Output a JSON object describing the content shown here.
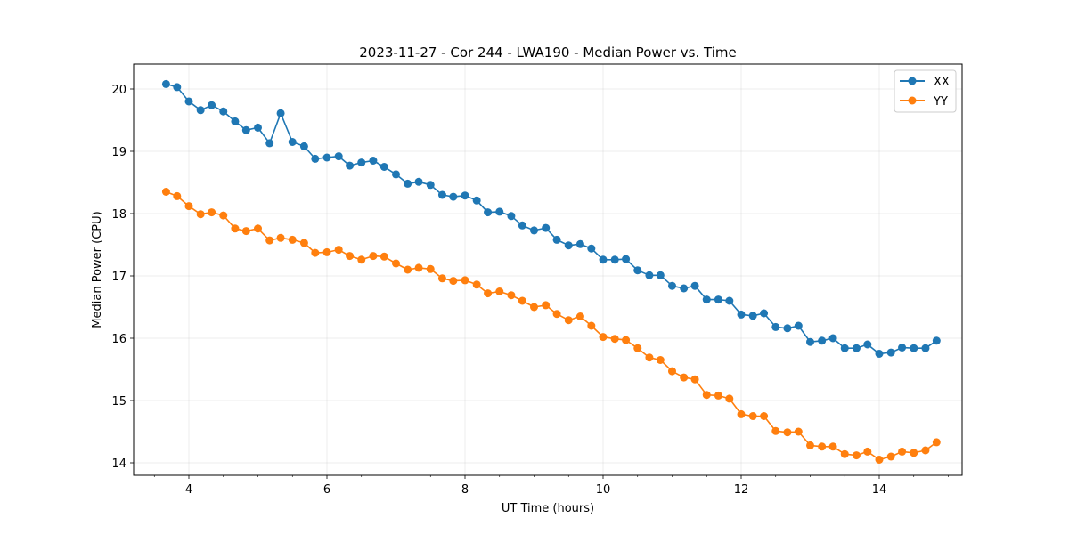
{
  "chart_data": {
    "type": "line",
    "title": "2023-11-27 - Cor 244 - LWA190 - Median Power vs. Time",
    "xlabel": "UT Time (hours)",
    "ylabel": "Median Power (CPU)",
    "xlim": [
      3.2,
      15.2
    ],
    "ylim": [
      13.8,
      20.4
    ],
    "xticks": [
      4,
      6,
      8,
      10,
      12,
      14
    ],
    "xtick_labels": [
      "4",
      "6",
      "8",
      "10",
      "12",
      "14"
    ],
    "yticks": [
      14,
      15,
      16,
      17,
      18,
      19,
      20
    ],
    "ytick_labels": [
      "14",
      "15",
      "16",
      "17",
      "18",
      "19",
      "20"
    ],
    "grid": true,
    "legend_position": "top-right",
    "x": [
      3.67,
      3.83,
      4.0,
      4.17,
      4.33,
      4.5,
      4.67,
      4.83,
      5.0,
      5.17,
      5.33,
      5.5,
      5.67,
      5.83,
      6.0,
      6.17,
      6.33,
      6.5,
      6.67,
      6.83,
      7.0,
      7.17,
      7.33,
      7.5,
      7.67,
      7.83,
      8.0,
      8.17,
      8.33,
      8.5,
      8.67,
      8.83,
      9.0,
      9.17,
      9.33,
      9.5,
      9.67,
      9.83,
      10.0,
      10.17,
      10.33,
      10.5,
      10.67,
      10.83,
      11.0,
      11.17,
      11.33,
      11.5,
      11.67,
      11.83,
      12.0,
      12.17,
      12.33,
      12.5,
      12.67,
      12.83,
      13.0,
      13.17,
      13.33,
      13.5,
      13.67,
      13.83,
      14.0,
      14.17,
      14.33,
      14.5,
      14.67,
      14.83
    ],
    "series": [
      {
        "name": "XX",
        "color": "#1f77b4",
        "values": [
          20.08,
          20.03,
          19.8,
          19.66,
          19.74,
          19.64,
          19.48,
          19.34,
          19.38,
          19.13,
          19.61,
          19.15,
          19.08,
          18.88,
          18.9,
          18.92,
          18.77,
          18.82,
          18.85,
          18.75,
          18.63,
          18.48,
          18.51,
          18.46,
          18.3,
          18.27,
          18.29,
          18.21,
          18.02,
          18.03,
          17.96,
          17.81,
          17.73,
          17.77,
          17.58,
          17.49,
          17.51,
          17.44,
          17.26,
          17.26,
          17.27,
          17.09,
          17.01,
          17.01,
          16.84,
          16.8,
          16.84,
          16.62,
          16.62,
          16.6,
          16.38,
          16.36,
          16.4,
          16.18,
          16.16,
          16.2,
          15.94,
          15.96,
          16.0,
          15.84,
          15.84,
          15.9,
          15.75,
          15.77,
          15.85,
          15.84,
          15.84,
          15.96
        ]
      },
      {
        "name": "YY",
        "color": "#ff7f0e",
        "values": [
          18.35,
          18.28,
          18.12,
          17.99,
          18.02,
          17.97,
          17.76,
          17.72,
          17.76,
          17.57,
          17.61,
          17.58,
          17.53,
          17.37,
          17.38,
          17.42,
          17.32,
          17.26,
          17.32,
          17.31,
          17.2,
          17.1,
          17.13,
          17.11,
          16.96,
          16.92,
          16.93,
          16.86,
          16.72,
          16.75,
          16.69,
          16.6,
          16.5,
          16.53,
          16.39,
          16.29,
          16.35,
          16.2,
          16.02,
          15.99,
          15.97,
          15.84,
          15.69,
          15.65,
          15.47,
          15.37,
          15.34,
          15.09,
          15.08,
          15.03,
          14.78,
          14.75,
          14.75,
          14.51,
          14.49,
          14.5,
          14.28,
          14.26,
          14.26,
          14.14,
          14.12,
          14.18,
          14.05,
          14.1,
          14.18,
          14.16,
          14.2,
          14.33
        ]
      }
    ]
  }
}
